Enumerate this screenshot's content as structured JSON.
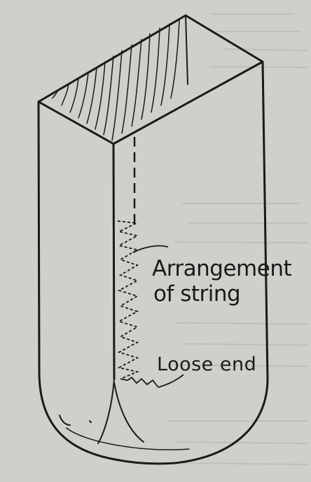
{
  "labels": {
    "arrangement_line1": "Arrangement",
    "arrangement_line2": "of string",
    "loose_end": "Loose end"
  },
  "colors": {
    "paper": "#cfcfcb",
    "ink": "#1a1a1a",
    "faint_bleed": "#b7b7b2"
  }
}
